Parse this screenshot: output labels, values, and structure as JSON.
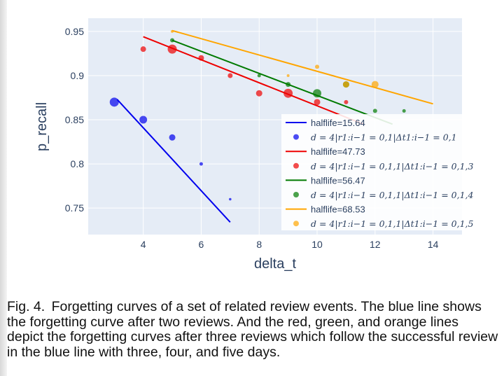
{
  "figure": {
    "label": "Fig. 4.",
    "caption": "Forgetting curves of a set of related review events. The blue line shows the forgetting curve after two reviews. And the red, green, and orange lines depict the forgetting curves after three reviews which follow the successful review in the blue line with three, four, and five days."
  },
  "chart_data": {
    "type": "scatter",
    "xlabel": "delta_t",
    "ylabel": "p_recall",
    "xlim": [
      2.1,
      15.0
    ],
    "ylim": [
      0.72,
      0.965
    ],
    "x_ticks": [
      4,
      6,
      8,
      10,
      12,
      14
    ],
    "y_ticks": [
      0.75,
      0.8,
      0.85,
      0.9,
      0.95
    ],
    "y_tick_labels": [
      "0.75",
      "0.8",
      "0.85",
      "0.9",
      "0.95"
    ],
    "grid": true,
    "legend_position": "bottom-right",
    "series": [
      {
        "color": "#0000ee",
        "line_label": "halflife=15.64",
        "marker_label": "d = 4|r1:i−1 = 0,1|Δt1:i−1 = 0,1",
        "line": [
          [
            3.1,
            0.873
          ],
          [
            7.0,
            0.734
          ]
        ],
        "points": [
          [
            3,
            0.87,
            6.5
          ],
          [
            4,
            0.85,
            5.5
          ],
          [
            5,
            0.83,
            4.5
          ],
          [
            6,
            0.8,
            2.5
          ],
          [
            7,
            0.76,
            1.8
          ]
        ]
      },
      {
        "color": "#ee0000",
        "line_label": "halflife=47.73",
        "marker_label": "d = 4|r1:i−1 = 0,1,1|Δt1:i−1 = 0,1,3",
        "line": [
          [
            4.0,
            0.944
          ],
          [
            11.6,
            0.845
          ]
        ],
        "points": [
          [
            4,
            0.93,
            4.0
          ],
          [
            5,
            0.93,
            6.5
          ],
          [
            6,
            0.92,
            4.0
          ],
          [
            7,
            0.9,
            3.5
          ],
          [
            8,
            0.88,
            4.5
          ],
          [
            9,
            0.88,
            6.5
          ],
          [
            10,
            0.87,
            4.5
          ],
          [
            11,
            0.87,
            3.0
          ]
        ]
      },
      {
        "color": "#007a00",
        "line_label": "halflife=56.47",
        "marker_label": "d = 4|r1:i−1 = 0,1,1|Δt1:i−1 = 0,1,4",
        "line": [
          [
            5.0,
            0.94
          ],
          [
            12.6,
            0.845
          ]
        ],
        "points": [
          [
            5,
            0.94,
            3.0
          ],
          [
            8,
            0.9,
            2.5
          ],
          [
            9,
            0.89,
            3.5
          ],
          [
            10,
            0.88,
            6.0
          ],
          [
            11,
            0.89,
            4.5
          ],
          [
            12,
            0.86,
            3.0
          ],
          [
            13,
            0.86,
            2.5
          ]
        ]
      },
      {
        "color": "#ffa500",
        "line_label": "halflife=68.53",
        "marker_label": "d = 4|r1:i−1 = 0,1,1|Δt1:i−1 = 0,1,5",
        "line": [
          [
            5.0,
            0.951
          ],
          [
            14.0,
            0.868
          ]
        ],
        "points": [
          [
            5,
            0.95,
            2.0
          ],
          [
            9,
            0.9,
            2.0
          ],
          [
            10,
            0.91,
            3.0
          ],
          [
            11,
            0.89,
            4.5
          ],
          [
            12,
            0.89,
            5.0
          ]
        ]
      }
    ]
  }
}
